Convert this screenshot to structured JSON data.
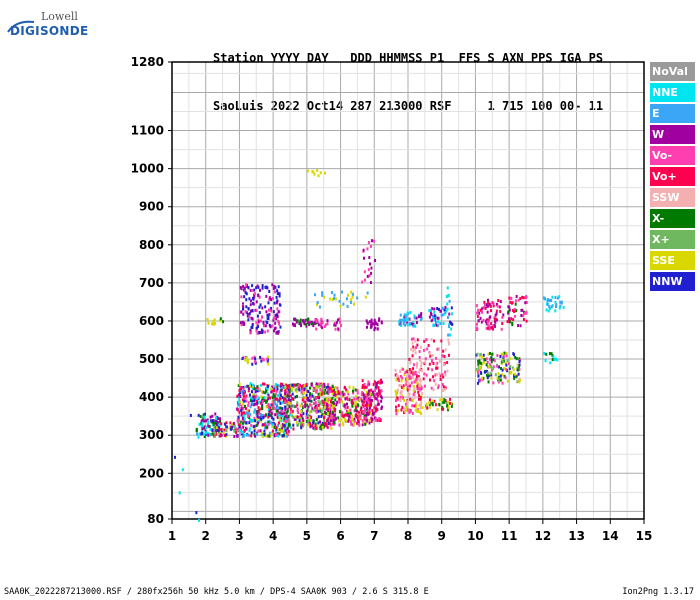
{
  "logo": {
    "top": "Lowell",
    "main": "DIGISONDE"
  },
  "header": {
    "line1": "Station YYYY DAY   DDD HHMMSS P1  FFS S AXN PPS IGA PS",
    "line2": "SaoLuis 2022 Oct14 287 213000 RSF     1 715 100 00- 11"
  },
  "legend": [
    {
      "label": "NoVal",
      "color": "#9a9a9a"
    },
    {
      "label": "NNE",
      "color": "#00e5f0"
    },
    {
      "label": "E",
      "color": "#3aa6f5"
    },
    {
      "label": "W",
      "color": "#a000a0"
    },
    {
      "label": "Vo-",
      "color": "#ff3fb0"
    },
    {
      "label": "Vo+",
      "color": "#ff0050"
    },
    {
      "label": "SSW",
      "color": "#f4b0b0"
    },
    {
      "label": "X-",
      "color": "#007a00"
    },
    {
      "label": "X+",
      "color": "#70b860"
    },
    {
      "label": "SSE",
      "color": "#d8d800"
    },
    {
      "label": "NNW",
      "color": "#2020d0"
    }
  ],
  "footer": {
    "left": "SAA0K_2022287213000.RSF / 280fx256h 50 kHz 5.0 km / DPS-4 SAA0K 903 / 2.6 S 315.8 E",
    "right": "Ion2Png 1.3.17"
  },
  "chart_data": {
    "type": "scatter",
    "xlim": [
      1,
      15
    ],
    "ylim": [
      80,
      1280
    ],
    "xticks": [
      "1",
      "2",
      "3",
      "4",
      "5",
      "6",
      "7",
      "8",
      "9",
      "10",
      "11",
      "12",
      "13",
      "14",
      "15"
    ],
    "yticks": [
      {
        "value": 80,
        "label": "80"
      },
      {
        "value": 200,
        "label": "200"
      },
      {
        "value": 300,
        "label": "300"
      },
      {
        "value": 400,
        "label": "400"
      },
      {
        "value": 500,
        "label": "500"
      },
      {
        "value": 600,
        "label": "600"
      },
      {
        "value": 700,
        "label": "700"
      },
      {
        "value": 800,
        "label": "800"
      },
      {
        "value": 900,
        "label": "900"
      },
      {
        "value": 1000,
        "label": "1000"
      },
      {
        "value": 1100,
        "label": "1100"
      },
      {
        "value": 1280,
        "label": "1280"
      }
    ],
    "ygrid_extra": [
      1200
    ],
    "grid": true,
    "clusters": [
      {
        "x": [
          1.7,
          2.4
        ],
        "y": [
          300,
          360
        ],
        "n": 90,
        "colors": [
          "#2020d0",
          "#a000a0",
          "#007a00",
          "#00e5f0"
        ]
      },
      {
        "x": [
          2.2,
          3.0
        ],
        "y": [
          300,
          340
        ],
        "n": 60,
        "colors": [
          "#ff0050",
          "#a000a0",
          "#2020d0",
          "#d8d800",
          "#70b860"
        ]
      },
      {
        "x": [
          2.9,
          4.5
        ],
        "y": [
          300,
          440
        ],
        "n": 520,
        "colors": [
          "#2020d0",
          "#a000a0",
          "#ff0050",
          "#ff3fb0",
          "#007a00",
          "#d8d800",
          "#00e5f0",
          "#3aa6f5"
        ]
      },
      {
        "x": [
          4.3,
          5.8
        ],
        "y": [
          320,
          440
        ],
        "n": 380,
        "colors": [
          "#ff0050",
          "#a000a0",
          "#2020d0",
          "#ff3fb0",
          "#007a00",
          "#d8d800",
          "#70b860"
        ]
      },
      {
        "x": [
          5.5,
          6.9
        ],
        "y": [
          330,
          430
        ],
        "n": 260,
        "colors": [
          "#ff0050",
          "#ff3fb0",
          "#a000a0",
          "#007a00",
          "#d8d800"
        ]
      },
      {
        "x": [
          6.6,
          7.2
        ],
        "y": [
          340,
          450
        ],
        "n": 120,
        "colors": [
          "#ff0050",
          "#ff3fb0",
          "#a000a0"
        ]
      },
      {
        "x": [
          7.6,
          8.4
        ],
        "y": [
          360,
          480
        ],
        "n": 150,
        "colors": [
          "#ff0050",
          "#ff3fb0",
          "#f4b0b0",
          "#d8d800"
        ]
      },
      {
        "x": [
          8.0,
          9.2
        ],
        "y": [
          420,
          560
        ],
        "n": 120,
        "colors": [
          "#ff0050",
          "#ff3fb0",
          "#f4b0b0"
        ]
      },
      {
        "x": [
          8.5,
          9.3
        ],
        "y": [
          370,
          400
        ],
        "n": 40,
        "colors": [
          "#d8d800",
          "#ff0050",
          "#007a00"
        ]
      },
      {
        "x": [
          10.0,
          11.3
        ],
        "y": [
          440,
          520
        ],
        "n": 150,
        "colors": [
          "#007a00",
          "#d8d800",
          "#70b860",
          "#2020d0",
          "#ff3fb0"
        ]
      },
      {
        "x": [
          3.0,
          4.2
        ],
        "y": [
          570,
          700
        ],
        "n": 180,
        "colors": [
          "#a000a0",
          "#ff3fb0",
          "#2020d0"
        ]
      },
      {
        "x": [
          4.5,
          5.3
        ],
        "y": [
          590,
          610
        ],
        "n": 40,
        "colors": [
          "#a000a0",
          "#007a00"
        ]
      },
      {
        "x": [
          5.2,
          6.0
        ],
        "y": [
          580,
          610
        ],
        "n": 30,
        "colors": [
          "#a000a0",
          "#ff3fb0"
        ]
      },
      {
        "x": [
          6.7,
          7.2
        ],
        "y": [
          580,
          610
        ],
        "n": 25,
        "colors": [
          "#a000a0"
        ]
      },
      {
        "x": [
          7.7,
          8.4
        ],
        "y": [
          590,
          630
        ],
        "n": 50,
        "colors": [
          "#3aa6f5",
          "#00e5f0",
          "#a000a0"
        ]
      },
      {
        "x": [
          8.6,
          9.3
        ],
        "y": [
          590,
          640
        ],
        "n": 50,
        "colors": [
          "#3aa6f5",
          "#00e5f0",
          "#a000a0",
          "#2020d0"
        ]
      },
      {
        "x": [
          10.0,
          10.8
        ],
        "y": [
          580,
          660
        ],
        "n": 80,
        "colors": [
          "#a000a0",
          "#ff3fb0",
          "#ff0050"
        ]
      },
      {
        "x": [
          10.9,
          11.5
        ],
        "y": [
          590,
          670
        ],
        "n": 50,
        "colors": [
          "#a000a0",
          "#ff3fb0",
          "#ff0050",
          "#007a00"
        ]
      },
      {
        "x": [
          12.0,
          12.6
        ],
        "y": [
          630,
          670
        ],
        "n": 30,
        "colors": [
          "#00e5f0",
          "#3aa6f5"
        ]
      },
      {
        "x": [
          3.0,
          4.0
        ],
        "y": [
          490,
          510
        ],
        "n": 25,
        "colors": [
          "#d8d800",
          "#ff3fb0",
          "#2020d0"
        ]
      },
      {
        "x": [
          12.0,
          12.5
        ],
        "y": [
          490,
          520
        ],
        "n": 12,
        "colors": [
          "#007a00",
          "#00e5f0"
        ]
      },
      {
        "x": [
          5.0,
          6.8
        ],
        "y": [
          640,
          680
        ],
        "n": 30,
        "colors": [
          "#d8d800",
          "#3aa6f5"
        ]
      },
      {
        "x": [
          6.6,
          7.0
        ],
        "y": [
          700,
          820
        ],
        "n": 20,
        "colors": [
          "#a000a0",
          "#ff3fb0"
        ]
      },
      {
        "x": [
          5.0,
          5.6
        ],
        "y": [
          985,
          1000
        ],
        "n": 8,
        "colors": [
          "#d8d800"
        ]
      },
      {
        "x": [
          2.0,
          2.5
        ],
        "y": [
          595,
          610
        ],
        "n": 10,
        "colors": [
          "#007a00",
          "#d8d800"
        ]
      },
      {
        "x": [
          9.1,
          9.3
        ],
        "y": [
          540,
          700
        ],
        "n": 12,
        "colors": [
          "#3aa6f5",
          "#00e5f0"
        ]
      },
      {
        "x": [
          1.0,
          1.8
        ],
        "y": [
          80,
          360
        ],
        "n": 8,
        "colors": [
          "#00e5f0",
          "#2020d0",
          "#3aa6f5"
        ]
      }
    ]
  }
}
